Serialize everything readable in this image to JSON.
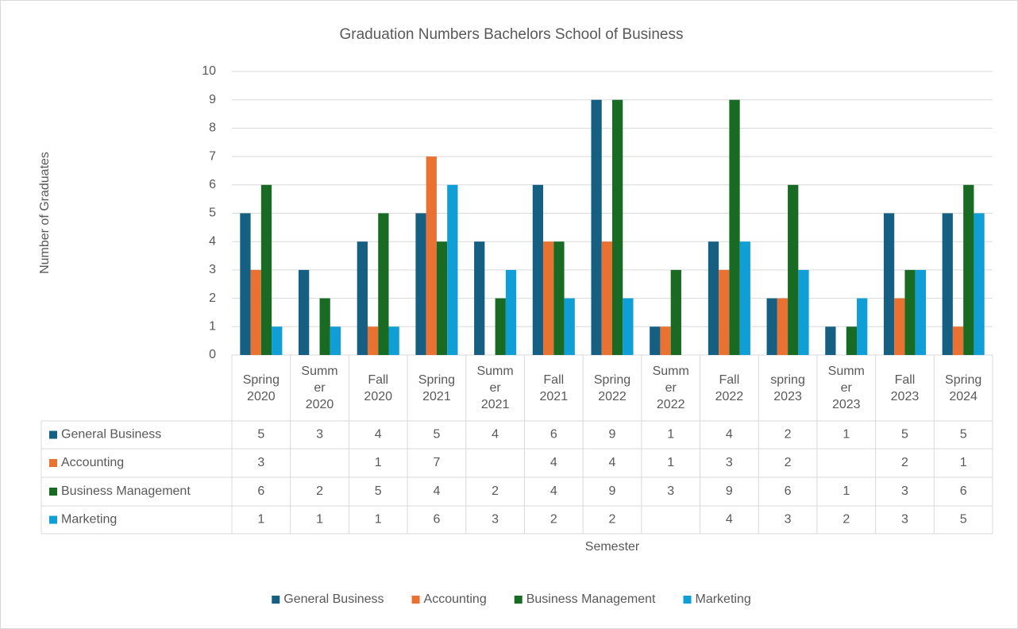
{
  "chart_data": {
    "type": "bar",
    "title": "Graduation Numbers Bachelors School of Business",
    "x_label": "Semester",
    "y_label": "Number of Graduates",
    "categories": [
      "Spring 2020",
      "Summer 2020",
      "Fall 2020",
      "Spring 2021",
      "Summer 2021",
      "Fall 2021",
      "Spring 2022",
      "Summer 2022",
      "Fall 2022",
      "spring 2023",
      "Summer 2023",
      "Fall 2023",
      "Spring 2024"
    ],
    "series": [
      {
        "name": "General Business",
        "color": "#156082",
        "values": [
          5,
          3,
          4,
          5,
          4,
          6,
          9,
          1,
          4,
          2,
          1,
          5,
          5
        ]
      },
      {
        "name": "Accounting",
        "color": "#e97132",
        "values": [
          3,
          null,
          1,
          7,
          null,
          4,
          4,
          1,
          3,
          2,
          null,
          2,
          1
        ]
      },
      {
        "name": "Business Management",
        "color": "#196b24",
        "values": [
          6,
          2,
          5,
          4,
          2,
          4,
          9,
          3,
          9,
          6,
          1,
          3,
          6
        ]
      },
      {
        "name": "Marketing",
        "color": "#0f9ed5",
        "values": [
          1,
          1,
          1,
          6,
          3,
          2,
          2,
          null,
          4,
          3,
          2,
          3,
          5
        ]
      }
    ],
    "ylim": [
      0,
      10
    ],
    "yticks": [
      0,
      1,
      2,
      3,
      4,
      5,
      6,
      7,
      8,
      9,
      10
    ],
    "grid": true,
    "legend": "bottom"
  }
}
